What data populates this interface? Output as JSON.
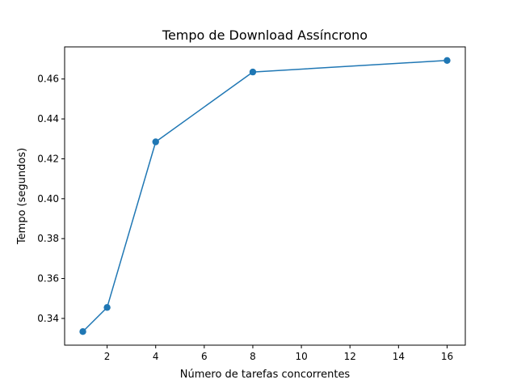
{
  "chart_data": {
    "type": "line",
    "title": "Tempo de Download Assíncrono",
    "xlabel": "Número de tarefas concorrentes",
    "ylabel": "Tempo (segundos)",
    "x": [
      1,
      2,
      4,
      8,
      16
    ],
    "series": [
      {
        "values": [
          0.3334,
          0.3455,
          0.4285,
          0.4635,
          0.4693
        ]
      }
    ],
    "xlim": [
      0.25,
      16.75
    ],
    "ylim": [
      0.3266,
      0.4761
    ],
    "xticks": [
      2,
      4,
      6,
      8,
      10,
      12,
      14,
      16
    ],
    "yticks": [
      0.34,
      0.36,
      0.38,
      0.4,
      0.42,
      0.44,
      0.46
    ],
    "ytick_labels": [
      "0.34",
      "0.36",
      "0.38",
      "0.40",
      "0.42",
      "0.44",
      "0.46"
    ],
    "marker": "circle",
    "grid": false,
    "legend": "none",
    "colors": {
      "line": "#1f77b4",
      "axes": "#000000",
      "background": "#ffffff"
    }
  }
}
